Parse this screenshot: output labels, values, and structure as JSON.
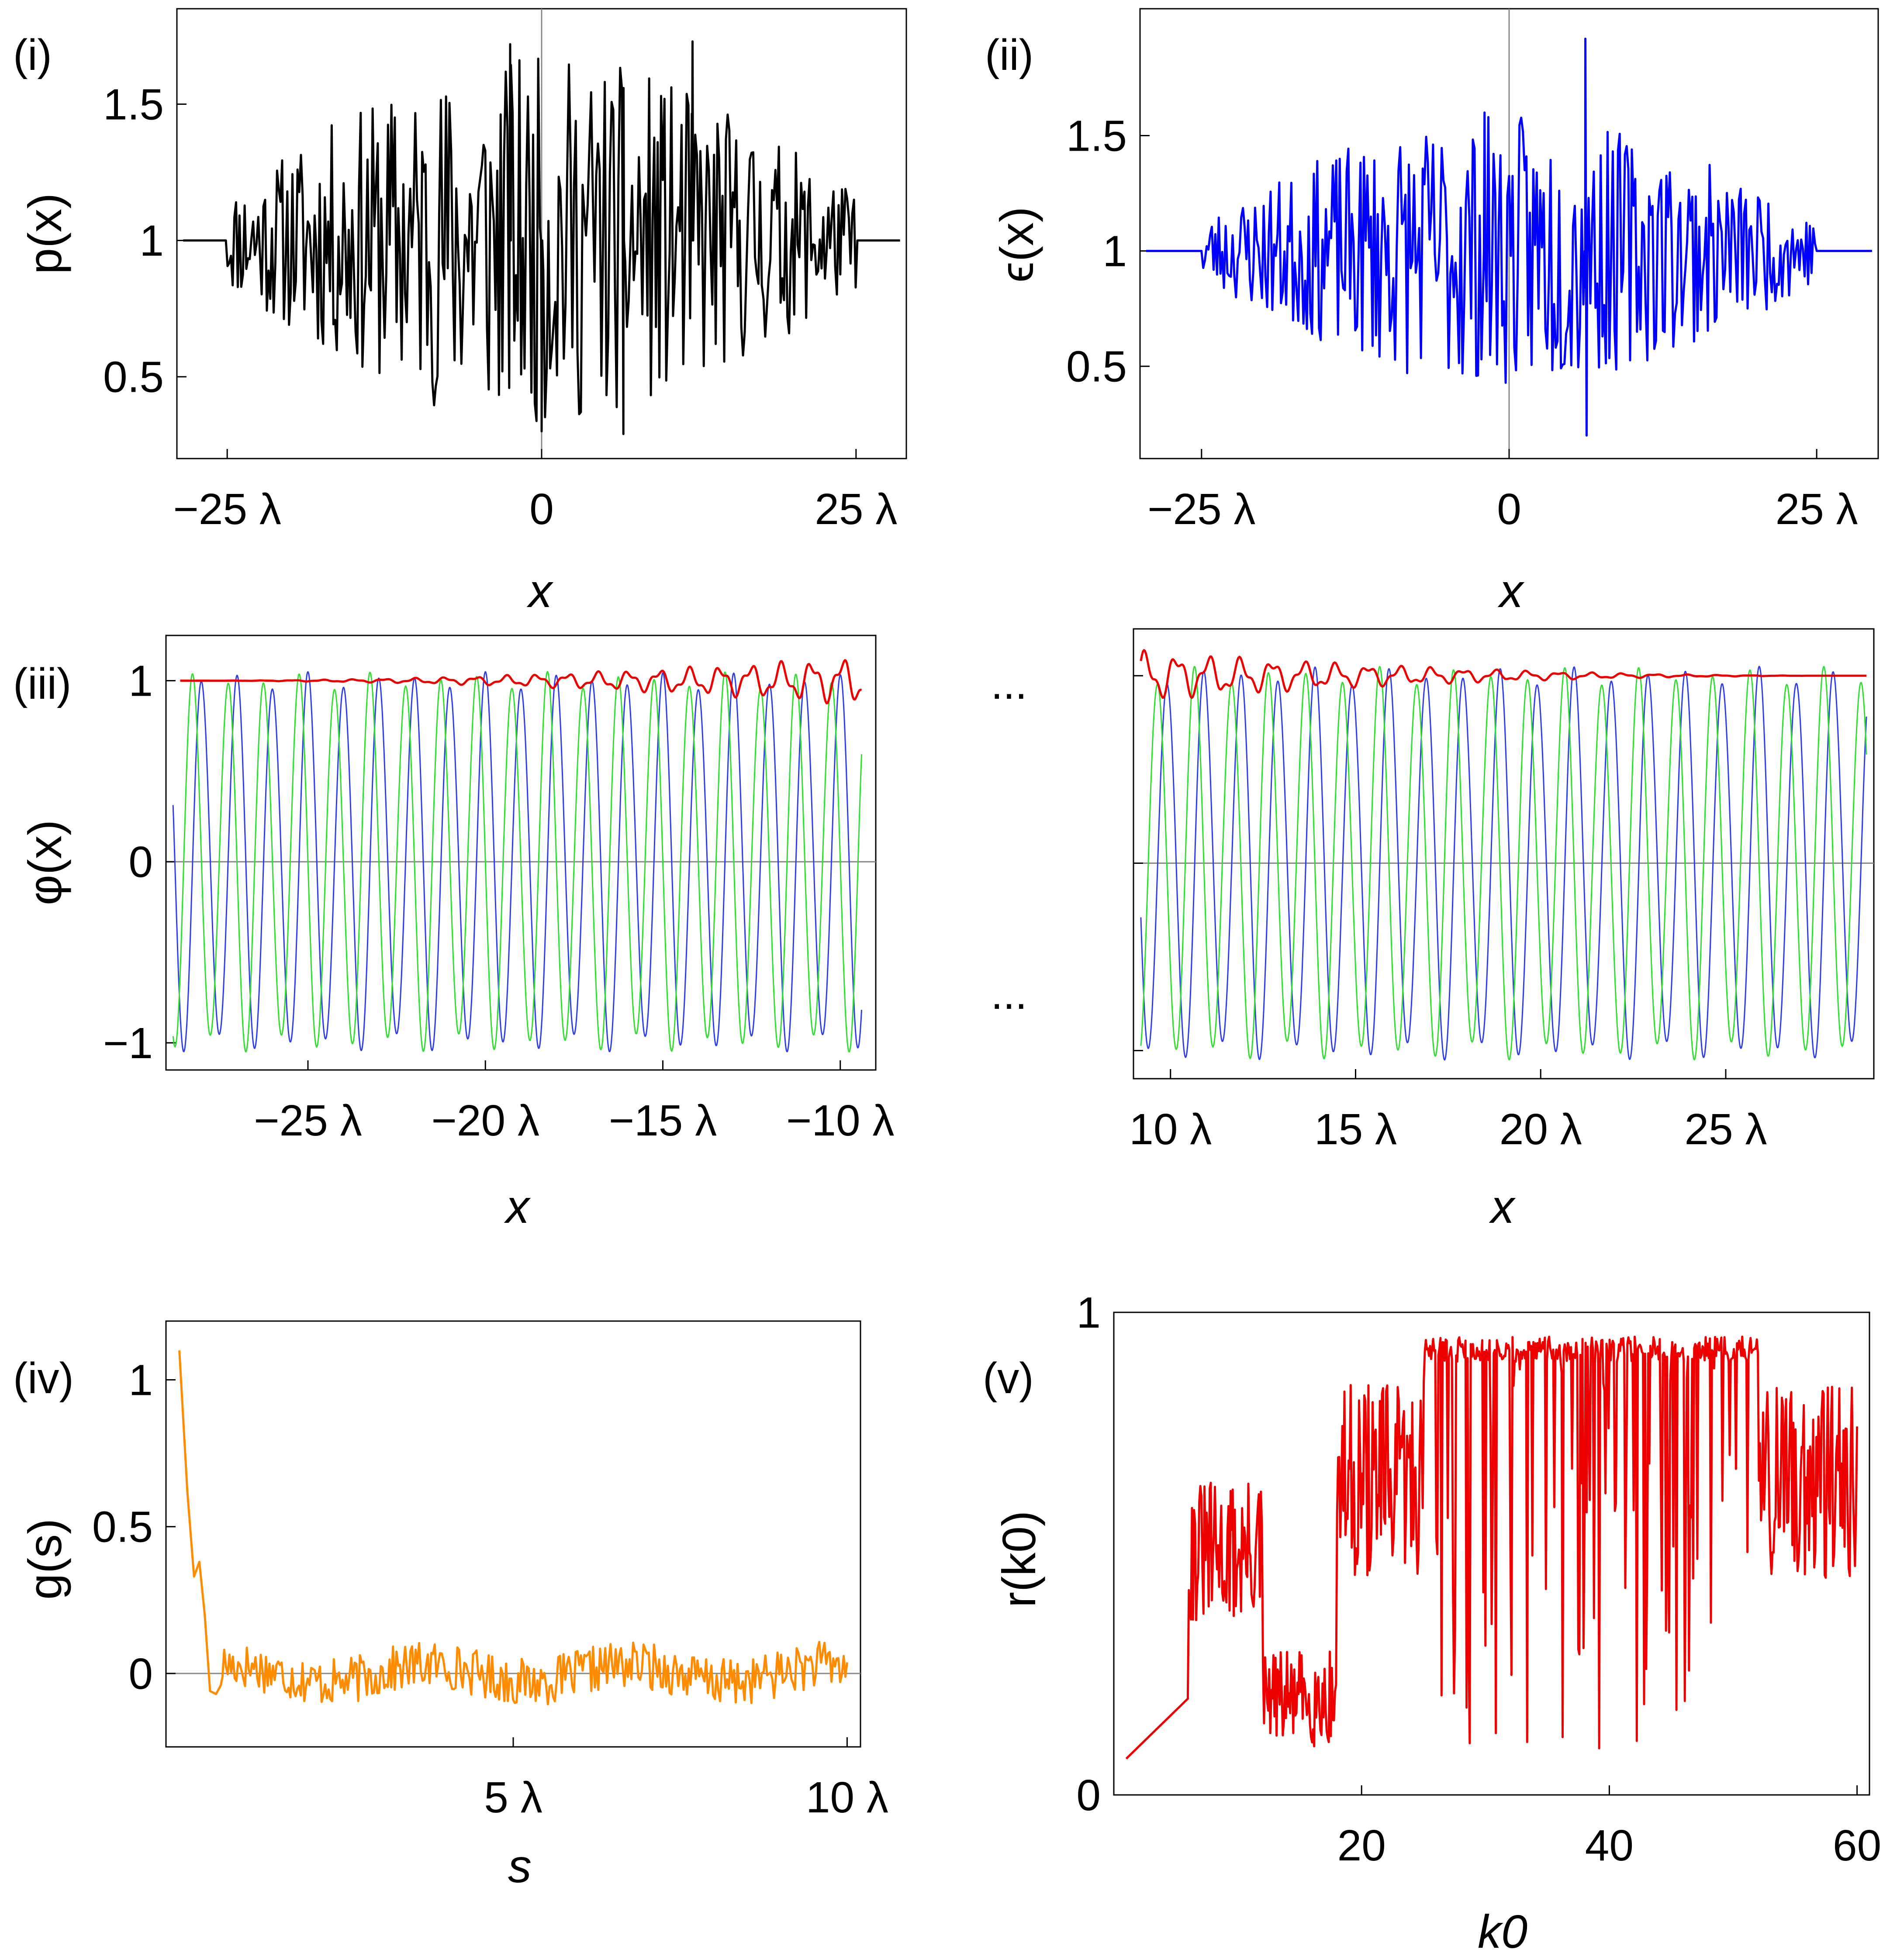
{
  "chart_data": [
    {
      "id": "i",
      "type": "line",
      "panel_label": "(i)",
      "ylabel": "p(x)",
      "xlabel": "x",
      "xlim": [
        -29,
        29
      ],
      "ylim": [
        0.2,
        1.85
      ],
      "xticks": [
        {
          "v": -25,
          "label": "−25 λ"
        },
        {
          "v": 0,
          "label": "0"
        },
        {
          "v": 25,
          "label": "25 λ"
        }
      ],
      "yticks": [
        {
          "v": 0.5,
          "label": "0.5"
        },
        {
          "v": 1,
          "label": "1"
        },
        {
          "v": 1.5,
          "label": "1.5"
        }
      ],
      "zero_line_x": 0,
      "series": [
        {
          "name": "p(x)",
          "color": "#000000",
          "kind": "random",
          "flat": 1,
          "lo": -25,
          "hi": 25,
          "amp": 0.45,
          "peakAmp": 0.55,
          "seed": 11,
          "n": 420,
          "spikes": [
            {
              "x": 12,
              "y": 1.73
            },
            {
              "x": -2.5,
              "y": 1.72
            },
            {
              "x": 6.5,
              "y": 0.29
            },
            {
              "x": 0,
              "y": 0.3
            }
          ]
        }
      ]
    },
    {
      "id": "ii",
      "type": "line",
      "panel_label": "(ii)",
      "ylabel": "ϵ(x)",
      "xlabel": "x",
      "xlim": [
        -30,
        30
      ],
      "ylim": [
        0.1,
        2.05
      ],
      "xticks": [
        {
          "v": -25,
          "label": "−25 λ"
        },
        {
          "v": 0,
          "label": "0"
        },
        {
          "v": 25,
          "label": "25 λ"
        }
      ],
      "yticks": [
        {
          "v": 0.5,
          "label": "0.5"
        },
        {
          "v": 1,
          "label": "1"
        },
        {
          "v": 1.5,
          "label": "1.5"
        }
      ],
      "zero_line_x": 0,
      "series": [
        {
          "name": "ϵ(x)",
          "color": "#0000ff",
          "kind": "random",
          "flat": 1,
          "lo": -25,
          "hi": 25,
          "amp": 0.35,
          "peakAmp": 0.5,
          "seed": 23,
          "n": 420,
          "spikes": [
            {
              "x": 6.2,
              "y": 1.92
            },
            {
              "x": 6.3,
              "y": 0.2
            },
            {
              "x": -2,
              "y": 1.6
            }
          ]
        }
      ]
    },
    {
      "id": "iii-left",
      "type": "line",
      "panel_label": "(iii)",
      "ylabel": "φ(x)",
      "xlabel": "x",
      "xlim": [
        -29,
        -9
      ],
      "ylim": [
        -1.15,
        1.25
      ],
      "xticks": [
        {
          "v": -25,
          "label": "−25 λ"
        },
        {
          "v": -20,
          "label": "−20 λ"
        },
        {
          "v": -15,
          "label": "−15 λ"
        },
        {
          "v": -10,
          "label": "−10 λ"
        }
      ],
      "yticks": [
        {
          "v": -1,
          "label": "−1"
        },
        {
          "v": 0,
          "label": "0"
        },
        {
          "v": 1,
          "label": "1"
        }
      ],
      "zero_line_y": 0,
      "series": [
        {
          "name": "Re φ",
          "color": "#2f3fe6",
          "kind": "sine",
          "freq": 1.0,
          "phase": 0.0,
          "range": [
            -28.8,
            -9.4
          ]
        },
        {
          "name": "Im φ",
          "color": "#33dd33",
          "kind": "sine",
          "freq": 1.0,
          "phase": 1.5708,
          "range": [
            -28.8,
            -9.4
          ]
        },
        {
          "name": "|φ|",
          "color": "#ee0000",
          "kind": "envelope",
          "seed": 5,
          "range": [
            -28.6,
            -9.4
          ],
          "growTo": -9.4
        }
      ]
    },
    {
      "id": "iii-right",
      "type": "line",
      "panel_label": "",
      "ylabel": "",
      "xlabel": "x",
      "xlim": [
        9,
        29
      ],
      "ylim": [
        -1.15,
        1.25
      ],
      "xticks": [
        {
          "v": 10,
          "label": "10 λ"
        },
        {
          "v": 15,
          "label": "15 λ"
        },
        {
          "v": 20,
          "label": "20 λ"
        },
        {
          "v": 25,
          "label": "25 λ"
        }
      ],
      "yticks": [
        {
          "v": -1,
          "label": ""
        },
        {
          "v": 0,
          "label": ""
        },
        {
          "v": 1,
          "label": ""
        }
      ],
      "zero_line_y": 0,
      "series": [
        {
          "name": "Re φ",
          "color": "#2f3fe6",
          "kind": "sine",
          "freq": 1.0,
          "phase": 0.6,
          "range": [
            9.2,
            28.8
          ]
        },
        {
          "name": "Im φ",
          "color": "#33dd33",
          "kind": "sine",
          "freq": 1.0,
          "phase": 2.2,
          "range": [
            9.2,
            28.8
          ]
        },
        {
          "name": "|φ|",
          "color": "#ee0000",
          "kind": "envelope",
          "seed": 9,
          "range": [
            9.2,
            28.8
          ],
          "growTo": 9.2
        }
      ]
    },
    {
      "id": "iv",
      "type": "line",
      "panel_label": "(iv)",
      "ylabel": "g(s)",
      "xlabel": "s",
      "xlim": [
        -0.2,
        10.2
      ],
      "ylim": [
        -0.25,
        1.2
      ],
      "xticks": [
        {
          "v": 5,
          "label": "5 λ"
        },
        {
          "v": 10,
          "label": "10 λ"
        }
      ],
      "yticks": [
        {
          "v": 0,
          "label": "0"
        },
        {
          "v": 0.5,
          "label": "0.5"
        },
        {
          "v": 1,
          "label": "1"
        }
      ],
      "zero_line_y": 0,
      "series": [
        {
          "name": "g(s)",
          "color": "#ff8c00",
          "kind": "correlation",
          "seed": 17,
          "points": [
            [
              0,
              1.1
            ],
            [
              0.12,
              0.62
            ],
            [
              0.22,
              0.33
            ],
            [
              0.3,
              0.38
            ],
            [
              0.38,
              0.2
            ],
            [
              0.46,
              -0.06
            ],
            [
              0.55,
              -0.07
            ],
            [
              0.62,
              -0.04
            ]
          ],
          "range": [
            0.62,
            10
          ]
        }
      ]
    },
    {
      "id": "v",
      "type": "line",
      "panel_label": "(v)",
      "ylabel": "r(k0)",
      "xlabel": "k0",
      "xlim": [
        0,
        61
      ],
      "ylim": [
        0,
        1
      ],
      "xticks": [
        {
          "v": 20,
          "label": "20"
        },
        {
          "v": 40,
          "label": "40"
        },
        {
          "v": 60,
          "label": "60"
        }
      ],
      "yticks": [
        {
          "v": 0,
          "label": "0"
        },
        {
          "v": 1,
          "label": "1"
        }
      ],
      "series": [
        {
          "name": "r(k0)",
          "color": "#ee0000",
          "kind": "reflectance",
          "seed": 31,
          "range": [
            1,
            60
          ]
        }
      ]
    }
  ],
  "ellipsis": [
    "...",
    "..."
  ]
}
